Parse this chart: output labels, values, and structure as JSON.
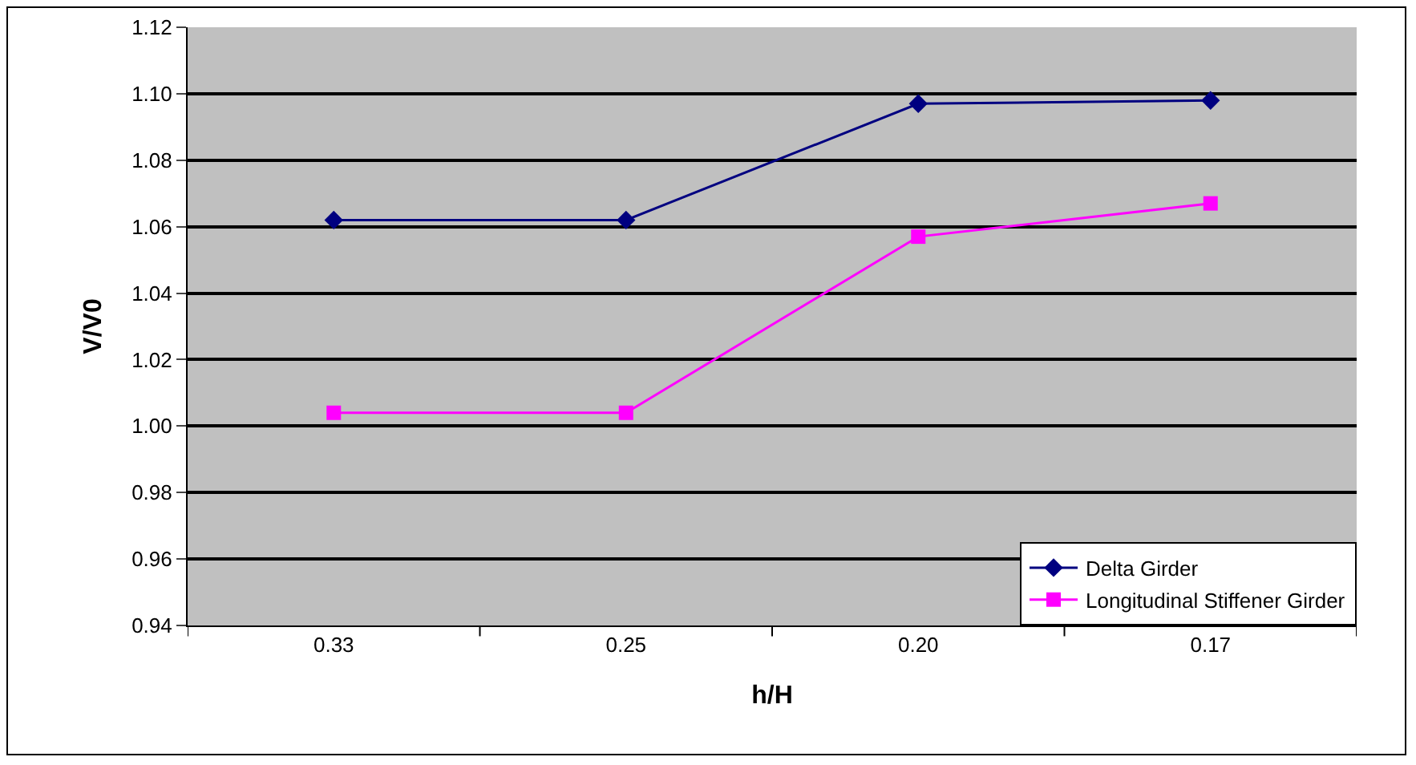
{
  "chart_data": {
    "type": "line",
    "xlabel": "h/H",
    "ylabel": "V/V0",
    "categories": [
      "0.33",
      "0.25",
      "0.20",
      "0.17"
    ],
    "series": [
      {
        "name": "Delta Girder",
        "color": "#000080",
        "marker": "diamond",
        "values": [
          1.062,
          1.062,
          1.097,
          1.098
        ]
      },
      {
        "name": "Longitudinal Stiffener Girder",
        "color": "#ff00ff",
        "marker": "square",
        "values": [
          1.004,
          1.004,
          1.057,
          1.067
        ]
      }
    ],
    "ylim": [
      0.94,
      1.12
    ],
    "yticks": [
      {
        "value": 0.94,
        "label": "0.94"
      },
      {
        "value": 0.96,
        "label": "0.96"
      },
      {
        "value": 0.98,
        "label": "0.98"
      },
      {
        "value": 1.0,
        "label": "1.00"
      },
      {
        "value": 1.02,
        "label": "1.02"
      },
      {
        "value": 1.04,
        "label": "1.04"
      },
      {
        "value": 1.06,
        "label": "1.06"
      },
      {
        "value": 1.08,
        "label": "1.08"
      },
      {
        "value": 1.1,
        "label": "1.10"
      },
      {
        "value": 1.12,
        "label": "1.12"
      }
    ],
    "grid": "y",
    "legend": "bottom right"
  }
}
